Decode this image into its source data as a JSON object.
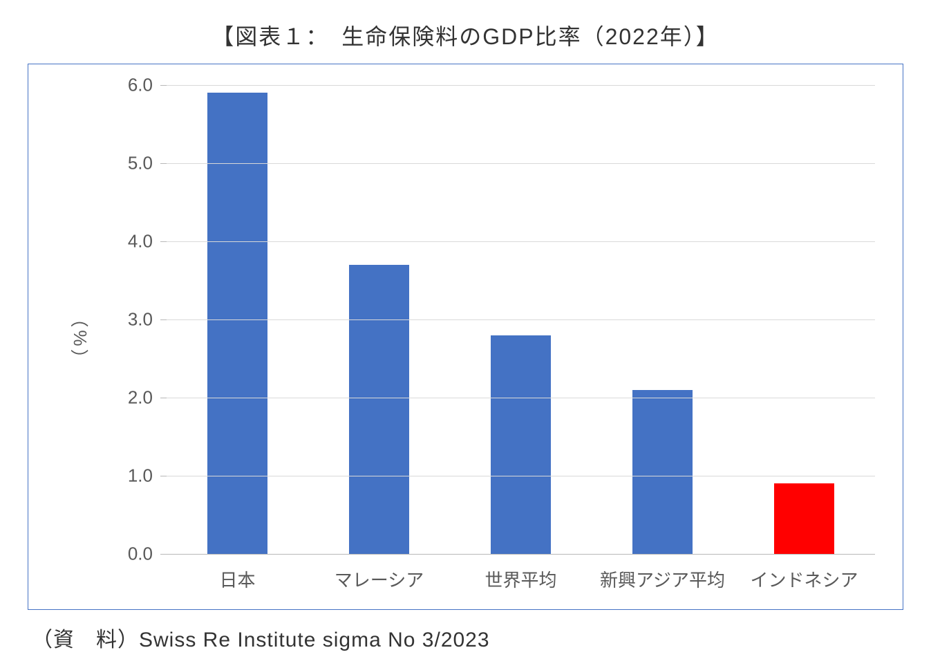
{
  "chart": {
    "type": "bar",
    "title": "【図表１：　生命保険料のGDP比率（2022年）】",
    "title_fontsize": 32,
    "title_color": "#333333",
    "ylabel": "（%）",
    "ylabel_fontsize": 26,
    "ylabel_color": "#595959",
    "categories": [
      "日本",
      "マレーシア",
      "世界平均",
      "新興アジア平均",
      "インドネシア"
    ],
    "values": [
      5.9,
      3.7,
      2.8,
      2.1,
      0.9
    ],
    "bar_colors": [
      "#4472c4",
      "#4472c4",
      "#4472c4",
      "#4472c4",
      "#ff0000"
    ],
    "ylim": [
      0.0,
      6.0
    ],
    "ytick_step": 1.0,
    "yticks": [
      0.0,
      1.0,
      2.0,
      3.0,
      4.0,
      5.0,
      6.0
    ],
    "ytick_labels": [
      "0.0",
      "1.0",
      "2.0",
      "3.0",
      "4.0",
      "5.0",
      "6.0"
    ],
    "tick_fontsize": 26,
    "tick_color": "#595959",
    "background_color": "#ffffff",
    "border_color": "#4472c4",
    "grid_color": "#d9d9d9",
    "axis_color": "#b7b7b7",
    "bar_width_ratio": 0.42,
    "source_label": "（資　料）Swiss Re Institute sigma No 3/2023",
    "source_fontsize": 30,
    "source_color": "#333333"
  }
}
